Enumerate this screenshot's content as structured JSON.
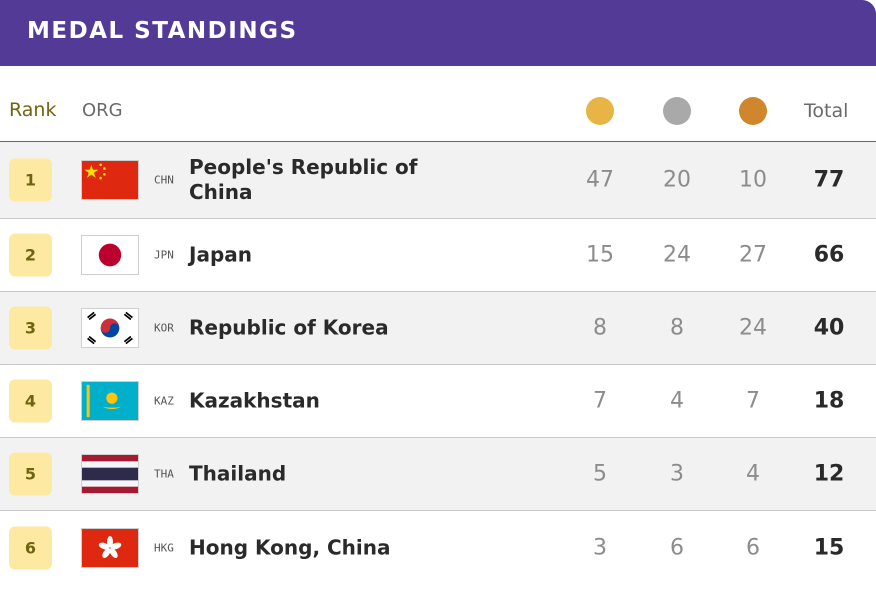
{
  "header": {
    "title": "MEDAL STANDINGS",
    "bg_color": "#533a97"
  },
  "columns": {
    "rank": "Rank",
    "org": "ORG",
    "total": "Total",
    "medal_icons": [
      {
        "name": "gold-medal-icon",
        "color": "#e8b445"
      },
      {
        "name": "silver-medal-icon",
        "color": "#a9a9a9"
      },
      {
        "name": "bronze-medal-icon",
        "color": "#cf862c"
      }
    ]
  },
  "rows": [
    {
      "rank": "1",
      "code": "CHN",
      "name": "People's Republic of China",
      "gold": "47",
      "silver": "20",
      "bronze": "10",
      "total": "77",
      "flag": "china-flag"
    },
    {
      "rank": "2",
      "code": "JPN",
      "name": "Japan",
      "gold": "15",
      "silver": "24",
      "bronze": "27",
      "total": "66",
      "flag": "japan-flag"
    },
    {
      "rank": "3",
      "code": "KOR",
      "name": "Republic of Korea",
      "gold": "8",
      "silver": "8",
      "bronze": "24",
      "total": "40",
      "flag": "korea-flag"
    },
    {
      "rank": "4",
      "code": "KAZ",
      "name": "Kazakhstan",
      "gold": "7",
      "silver": "4",
      "bronze": "7",
      "total": "18",
      "flag": "kazakhstan-flag"
    },
    {
      "rank": "5",
      "code": "THA",
      "name": "Thailand",
      "gold": "5",
      "silver": "3",
      "bronze": "4",
      "total": "12",
      "flag": "thailand-flag"
    },
    {
      "rank": "6",
      "code": "HKG",
      "name": "Hong Kong, China",
      "gold": "3",
      "silver": "6",
      "bronze": "6",
      "total": "15",
      "flag": "hong-kong-flag"
    }
  ]
}
